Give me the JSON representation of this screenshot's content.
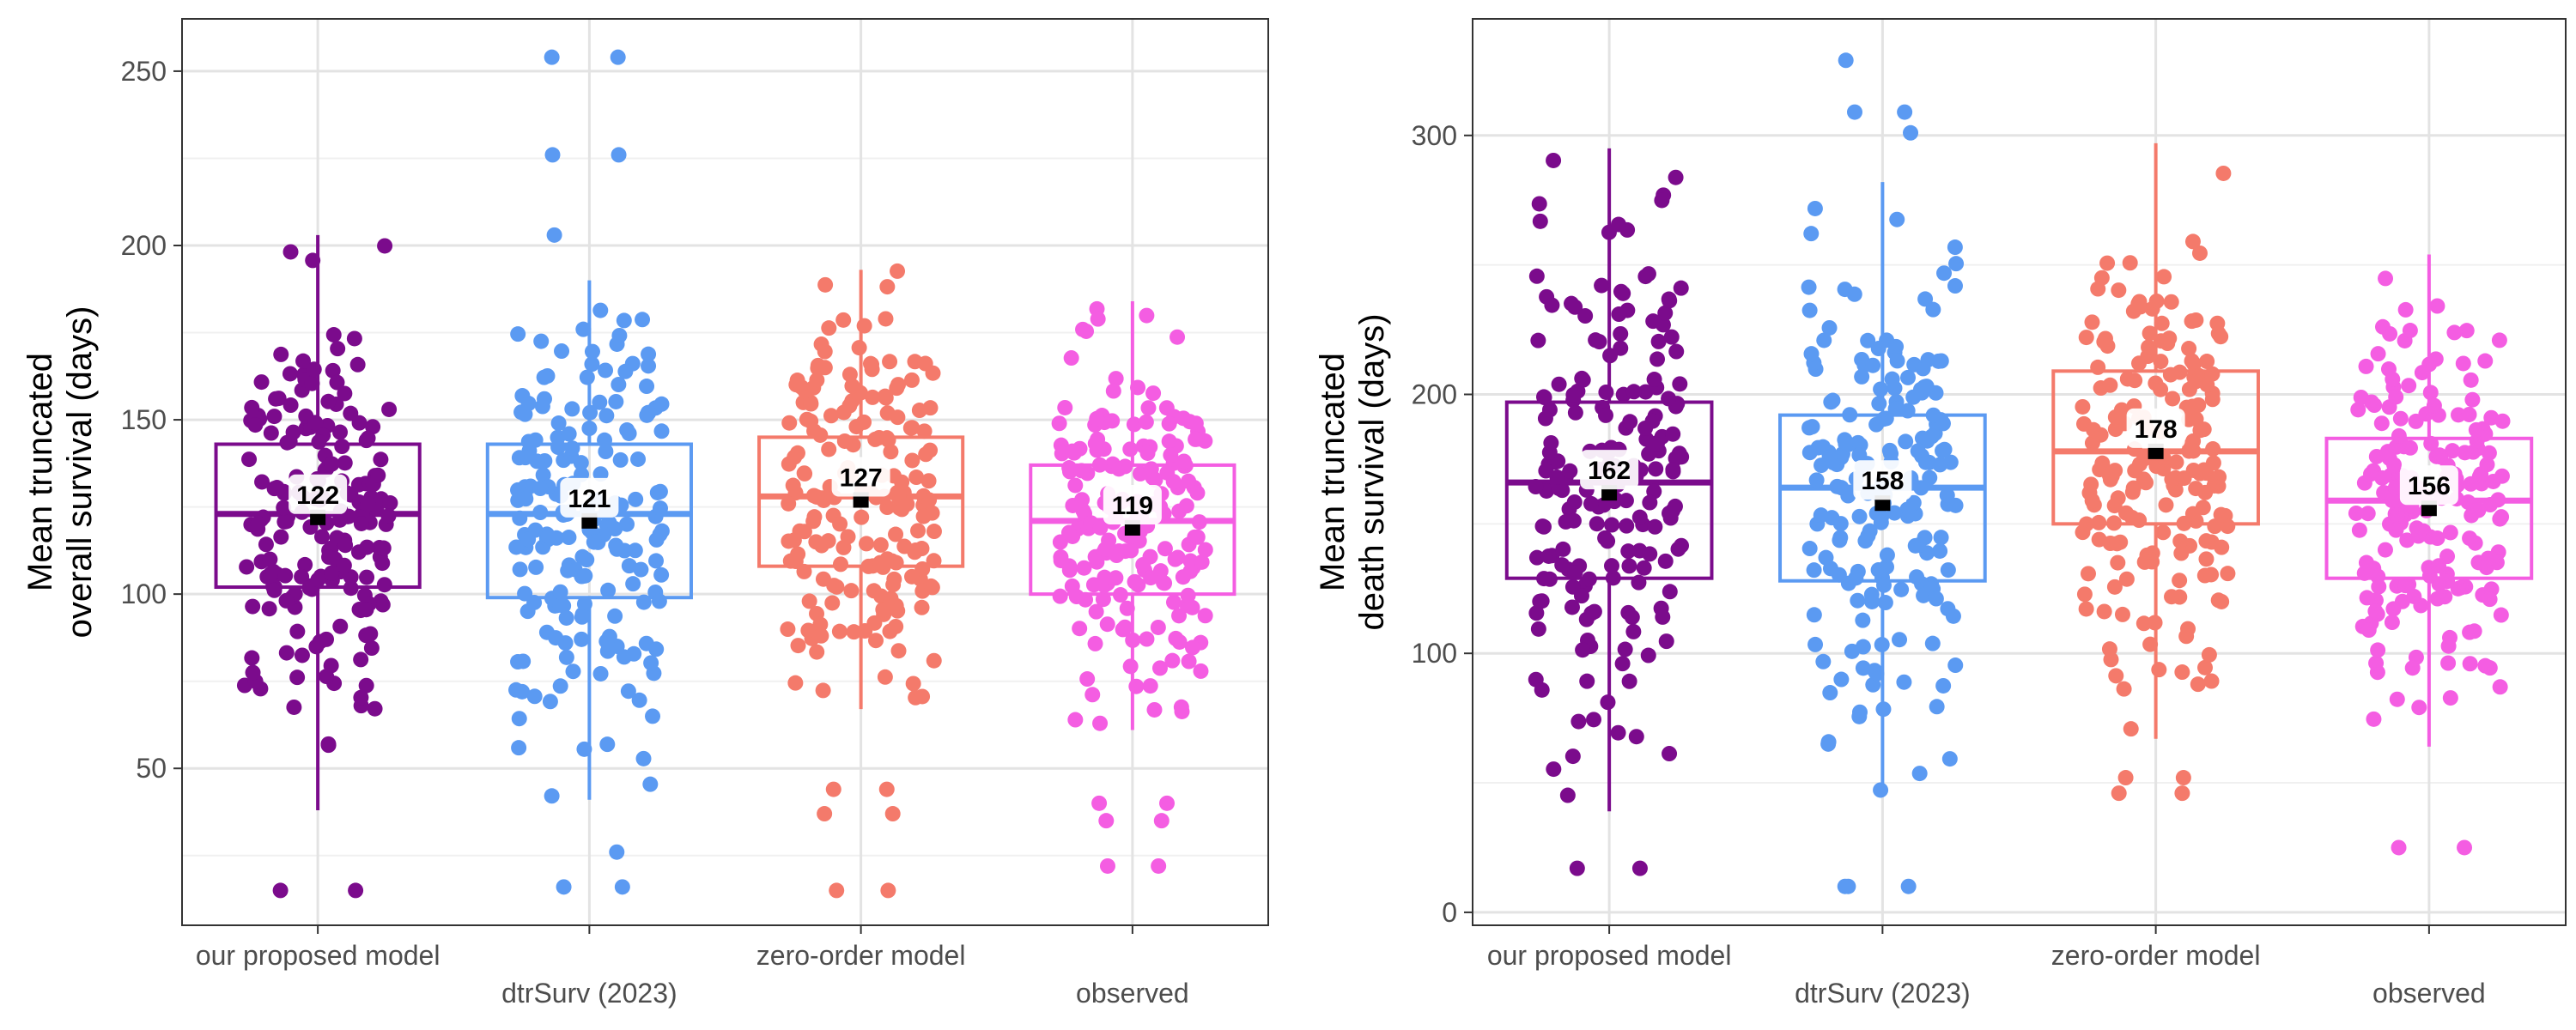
{
  "chart_data": [
    {
      "type": "box",
      "title": "",
      "xlabel": "",
      "ylabel_lines": [
        "Mean truncated",
        "overall survival (days)"
      ],
      "ylim": [
        5,
        265
      ],
      "yticks": [
        50,
        100,
        150,
        200,
        250
      ],
      "grid": true,
      "legend": "none",
      "categories": [
        "our proposed model",
        "dtrSurv (2023)",
        "zero-order model",
        "observed"
      ],
      "colors": [
        "#7B0B8C",
        "#5B9AF2",
        "#F47A6B",
        "#F45DE2"
      ],
      "series": [
        {
          "category": "our proposed model",
          "whisker_low": 38,
          "q1": 102,
          "median": 123,
          "q3": 143,
          "whisker_high": 203,
          "mean": 122,
          "mean_label": "122",
          "outliers": [
            15,
            15
          ]
        },
        {
          "category": "dtrSurv (2023)",
          "whisker_low": 41,
          "q1": 99,
          "median": 123,
          "q3": 143,
          "whisker_high": 190,
          "mean": 121,
          "mean_label": "121",
          "outliers": [
            254,
            254,
            226,
            226,
            203,
            26,
            16,
            16
          ]
        },
        {
          "category": "zero-order model",
          "whisker_low": 67,
          "q1": 108,
          "median": 128,
          "q3": 145,
          "whisker_high": 193,
          "mean": 127,
          "mean_label": "127",
          "outliers": [
            44,
            44,
            37,
            37,
            15,
            15
          ]
        },
        {
          "category": "observed",
          "whisker_low": 61,
          "q1": 100,
          "median": 121,
          "q3": 137,
          "whisker_high": 184,
          "mean": 119,
          "mean_label": "119",
          "outliers": [
            40,
            40,
            35,
            35,
            22,
            22
          ]
        }
      ]
    },
    {
      "type": "box",
      "title": "",
      "xlabel": "",
      "ylabel_lines": [
        "Mean truncated",
        "death survival (days)"
      ],
      "ylim": [
        -5,
        345
      ],
      "yticks": [
        0,
        100,
        200,
        300
      ],
      "grid": true,
      "legend": "none",
      "categories": [
        "our proposed model",
        "dtrSurv (2023)",
        "zero-order model",
        "observed"
      ],
      "colors": [
        "#7B0B8C",
        "#5B9AF2",
        "#F47A6B",
        "#F45DE2"
      ],
      "series": [
        {
          "category": "our proposed model",
          "whisker_low": 39,
          "q1": 129,
          "median": 166,
          "q3": 197,
          "whisker_high": 295,
          "mean": 162,
          "mean_label": "162",
          "outliers": [
            17,
            17
          ]
        },
        {
          "category": "dtrSurv (2023)",
          "whisker_low": 45,
          "q1": 128,
          "median": 164,
          "q3": 192,
          "whisker_high": 282,
          "mean": 158,
          "mean_label": "158",
          "outliers": [
            329,
            309,
            309,
            301,
            10,
            10,
            10
          ]
        },
        {
          "category": "zero-order model",
          "whisker_low": 67,
          "q1": 150,
          "median": 178,
          "q3": 209,
          "whisker_high": 297,
          "mean": 178,
          "mean_label": "178",
          "outliers": [
            46,
            46,
            52,
            52
          ]
        },
        {
          "category": "observed",
          "whisker_low": 64,
          "q1": 129,
          "median": 159,
          "q3": 183,
          "whisker_high": 254,
          "mean": 156,
          "mean_label": "156",
          "outliers": [
            25,
            25
          ]
        }
      ]
    }
  ]
}
